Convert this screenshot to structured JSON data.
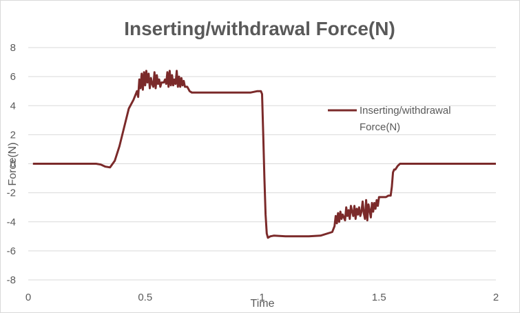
{
  "chart_data": {
    "type": "line",
    "title": "Inserting/withdrawal Force(N)",
    "xlabel": "Time",
    "ylabel": "Force(N)",
    "xlim": [
      0,
      2
    ],
    "ylim": [
      -8,
      8
    ],
    "xticks": [
      0,
      0.5,
      1,
      1.5,
      2
    ],
    "xtick_labels": [
      "0",
      "0.5",
      "1",
      "1.5",
      "2"
    ],
    "yticks": [
      8,
      6,
      4,
      2,
      0,
      -2,
      -4,
      -6,
      -8
    ],
    "ytick_labels": [
      "8",
      "6",
      "4",
      "2",
      "0",
      "-2",
      "-4",
      "-6",
      "-8"
    ],
    "grid": "horizontal",
    "legend": {
      "position": "right",
      "lines": [
        "Inserting/withdrawal",
        "Force(N)"
      ]
    },
    "series": [
      {
        "name": "Inserting/withdrawal Force(N)",
        "color": "#7b2a2a",
        "x": [
          0.02,
          0.29,
          0.31,
          0.33,
          0.35,
          0.37,
          0.39,
          0.41,
          0.43,
          0.45,
          0.465,
          0.47,
          0.475,
          0.48,
          0.485,
          0.49,
          0.495,
          0.5,
          0.505,
          0.51,
          0.515,
          0.52,
          0.525,
          0.53,
          0.535,
          0.54,
          0.545,
          0.55,
          0.555,
          0.56,
          0.565,
          0.57,
          0.575,
          0.58,
          0.585,
          0.59,
          0.595,
          0.6,
          0.605,
          0.61,
          0.615,
          0.62,
          0.625,
          0.63,
          0.635,
          0.64,
          0.645,
          0.65,
          0.655,
          0.66,
          0.665,
          0.67,
          0.68,
          0.69,
          0.7,
          0.72,
          0.75,
          0.8,
          0.85,
          0.9,
          0.95,
          0.98,
          0.995,
          1.0,
          1.005,
          1.01,
          1.015,
          1.02,
          1.025,
          1.035,
          1.05,
          1.1,
          1.15,
          1.2,
          1.25,
          1.3,
          1.31,
          1.315,
          1.32,
          1.325,
          1.33,
          1.335,
          1.34,
          1.345,
          1.35,
          1.355,
          1.36,
          1.365,
          1.37,
          1.375,
          1.38,
          1.385,
          1.39,
          1.395,
          1.4,
          1.405,
          1.41,
          1.415,
          1.42,
          1.425,
          1.43,
          1.435,
          1.44,
          1.445,
          1.45,
          1.455,
          1.46,
          1.465,
          1.47,
          1.475,
          1.48,
          1.485,
          1.49,
          1.495,
          1.5,
          1.505,
          1.51,
          1.52,
          1.53,
          1.54,
          1.55,
          1.555,
          1.56,
          1.565,
          1.57,
          1.58,
          1.59,
          1.6,
          1.7,
          1.8,
          1.9,
          2.0
        ],
        "y": [
          0,
          0,
          -0.05,
          -0.2,
          -0.25,
          0.2,
          1.2,
          2.5,
          3.8,
          4.4,
          5.0,
          4.6,
          5.8,
          5.2,
          6.2,
          5.1,
          6.3,
          5.4,
          6.4,
          5.6,
          6.2,
          5.2,
          5.9,
          5.5,
          5.3,
          6.3,
          5.2,
          6.1,
          5.5,
          5.8,
          5.3,
          5.6,
          5.6,
          5.6,
          5.8,
          5.5,
          6.3,
          5.3,
          6.4,
          5.4,
          6.1,
          5.4,
          5.8,
          5.5,
          6.4,
          5.3,
          6.0,
          5.3,
          5.9,
          5.4,
          5.7,
          5.3,
          5.3,
          5.0,
          4.9,
          4.9,
          4.9,
          4.9,
          4.9,
          4.9,
          4.9,
          5.0,
          5.0,
          4.8,
          2.0,
          -1.0,
          -3.5,
          -4.8,
          -5.1,
          -5.0,
          -4.95,
          -5.0,
          -5.0,
          -5.0,
          -4.95,
          -4.7,
          -4.3,
          -3.6,
          -4.1,
          -3.4,
          -4.0,
          -3.3,
          -3.8,
          -3.5,
          -3.7,
          -3.9,
          -3.0,
          -3.6,
          -3.2,
          -3.8,
          -2.9,
          -3.3,
          -3.6,
          -2.9,
          -3.8,
          -3.1,
          -3.5,
          -3.0,
          -3.6,
          -3.3,
          -2.6,
          -3.4,
          -3.8,
          -2.5,
          -3.9,
          -2.8,
          -3.2,
          -3.7,
          -2.7,
          -3.3,
          -2.7,
          -3.1,
          -2.5,
          -2.9,
          -2.3,
          -2.3,
          -2.3,
          -2.3,
          -2.3,
          -2.2,
          -2.2,
          -1.6,
          -0.6,
          -0.4,
          -0.4,
          -0.15,
          0.0,
          0.0,
          0.0,
          0.0,
          0.0,
          0.0
        ]
      }
    ]
  }
}
